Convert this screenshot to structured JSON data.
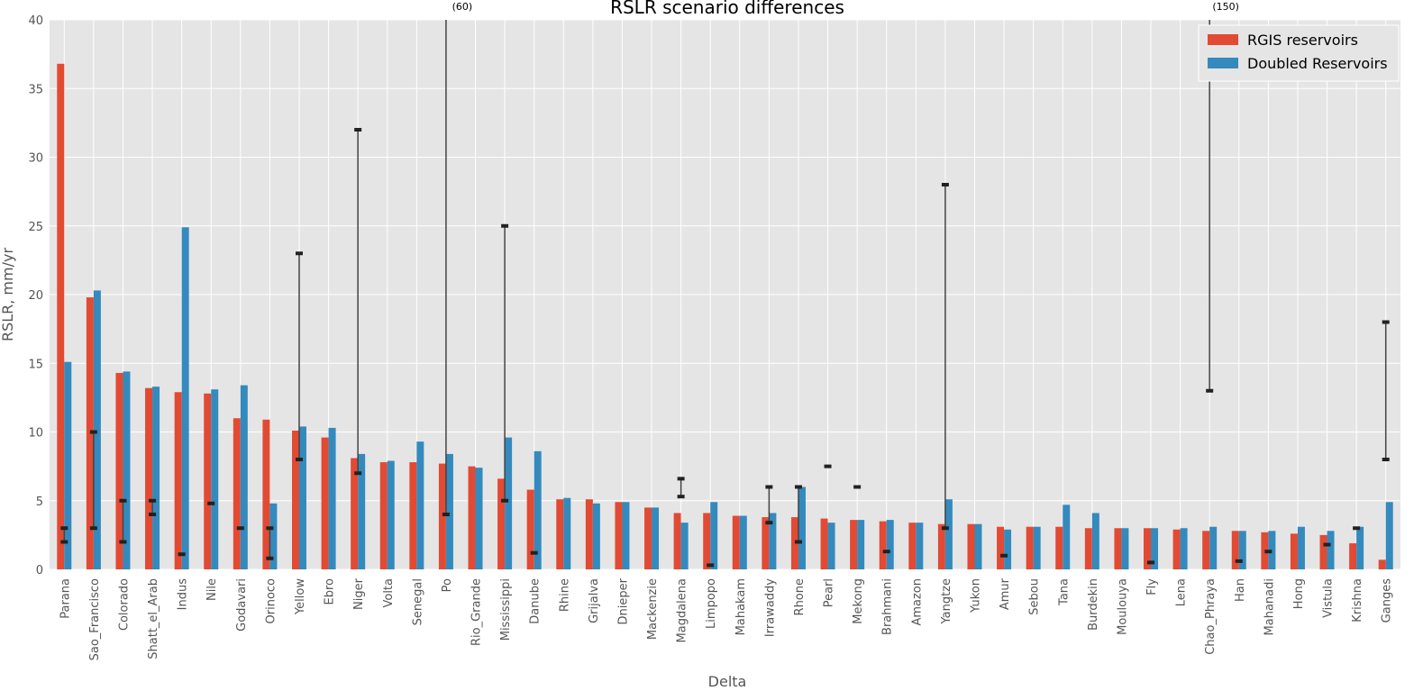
{
  "chart_data": {
    "type": "bar",
    "title": "RSLR scenario differences",
    "xlabel": "Delta",
    "ylabel": "RSLR, mm/yr",
    "ylim": [
      0,
      40
    ],
    "yticks": [
      0,
      5,
      10,
      15,
      20,
      25,
      30,
      35,
      40
    ],
    "grid": true,
    "legend_position": "top-right",
    "categories": [
      "Parana",
      "Sao_Francisco",
      "Colorado",
      "Shatt_el_Arab",
      "Indus",
      "Nile",
      "Godavari",
      "Orinoco",
      "Yellow",
      "Ebro",
      "Niger",
      "Volta",
      "Senegal",
      "Po",
      "Rio_Grande",
      "Mississippi",
      "Danube",
      "Rhine",
      "Grijalva",
      "Dnieper",
      "Mackenzie",
      "Magdalena",
      "Limpopo",
      "Mahakam",
      "Irrawaddy",
      "Rhone",
      "Pearl",
      "Mekong",
      "Brahmani",
      "Amazon",
      "Yangtze",
      "Yukon",
      "Amur",
      "Sebou",
      "Tana",
      "Burdekin",
      "Moulouya",
      "Fly",
      "Lena",
      "Chao_Phraya",
      "Han",
      "Mahanadi",
      "Hong",
      "Vistula",
      "Krishna",
      "Ganges"
    ],
    "series": [
      {
        "name": "RGIS reservoirs",
        "color": "#E24A33",
        "values": [
          36.8,
          19.8,
          14.3,
          13.2,
          12.9,
          12.8,
          11.0,
          10.9,
          10.1,
          9.6,
          8.1,
          7.8,
          7.8,
          7.7,
          7.5,
          6.6,
          5.8,
          5.1,
          5.1,
          4.9,
          4.5,
          4.1,
          4.1,
          3.9,
          3.8,
          3.8,
          3.7,
          3.6,
          3.5,
          3.4,
          3.3,
          3.3,
          3.1,
          3.1,
          3.1,
          3.0,
          3.0,
          3.0,
          2.9,
          2.8,
          2.8,
          2.7,
          2.6,
          2.5,
          1.9,
          0.7
        ]
      },
      {
        "name": "Doubled Reservoirs",
        "color": "#348ABD",
        "values": [
          15.1,
          20.3,
          14.4,
          13.3,
          24.9,
          13.1,
          13.4,
          4.8,
          10.4,
          10.3,
          8.4,
          7.9,
          9.3,
          8.4,
          7.4,
          9.6,
          8.6,
          5.2,
          4.8,
          4.9,
          4.5,
          3.4,
          4.9,
          3.9,
          4.1,
          6.0,
          3.4,
          3.6,
          3.6,
          3.4,
          5.1,
          3.3,
          2.9,
          3.1,
          4.7,
          4.1,
          3.0,
          3.0,
          3.0,
          3.1,
          2.8,
          2.8,
          3.1,
          2.8,
          3.1,
          4.9
        ]
      }
    ],
    "observed_ranges": [
      {
        "delta": "Parana",
        "markers": [
          2,
          3
        ]
      },
      {
        "delta": "Sao_Francisco",
        "markers": [
          3,
          10
        ]
      },
      {
        "delta": "Colorado",
        "markers": [
          2,
          5
        ]
      },
      {
        "delta": "Shatt_el_Arab",
        "markers": [
          4,
          5
        ]
      },
      {
        "delta": "Indus",
        "markers": [
          1.1
        ]
      },
      {
        "delta": "Nile",
        "markers": [
          4.8
        ]
      },
      {
        "delta": "Godavari",
        "markers": [
          3
        ]
      },
      {
        "delta": "Orinoco",
        "markers": [
          0.8,
          3
        ]
      },
      {
        "delta": "Yellow",
        "markers": [
          8,
          23
        ]
      },
      {
        "delta": "Niger",
        "markers": [
          7,
          32
        ]
      },
      {
        "delta": "Po",
        "markers": [
          4,
          60
        ],
        "label": "(60)"
      },
      {
        "delta": "Mississippi",
        "markers": [
          5,
          25
        ]
      },
      {
        "delta": "Danube",
        "markers": [
          1.2
        ]
      },
      {
        "delta": "Magdalena",
        "markers": [
          5.3,
          6.6
        ]
      },
      {
        "delta": "Limpopo",
        "markers": [
          0.3
        ]
      },
      {
        "delta": "Irrawaddy",
        "markers": [
          3.4,
          6
        ]
      },
      {
        "delta": "Rhone",
        "markers": [
          2,
          6
        ]
      },
      {
        "delta": "Pearl",
        "markers": [
          7.5
        ]
      },
      {
        "delta": "Mekong",
        "markers": [
          6
        ]
      },
      {
        "delta": "Brahmani",
        "markers": [
          1.3
        ]
      },
      {
        "delta": "Yangtze",
        "markers": [
          3,
          28
        ]
      },
      {
        "delta": "Amur",
        "markers": [
          1
        ]
      },
      {
        "delta": "Fly",
        "markers": [
          0.5
        ]
      },
      {
        "delta": "Chao_Phraya",
        "markers": [
          13,
          150
        ],
        "label": "(150)"
      },
      {
        "delta": "Han",
        "markers": [
          0.6
        ]
      },
      {
        "delta": "Mahanadi",
        "markers": [
          1.3
        ]
      },
      {
        "delta": "Vistula",
        "markers": [
          1.8
        ]
      },
      {
        "delta": "Krishna",
        "markers": [
          3
        ]
      },
      {
        "delta": "Ganges",
        "markers": [
          8,
          18
        ]
      }
    ]
  }
}
